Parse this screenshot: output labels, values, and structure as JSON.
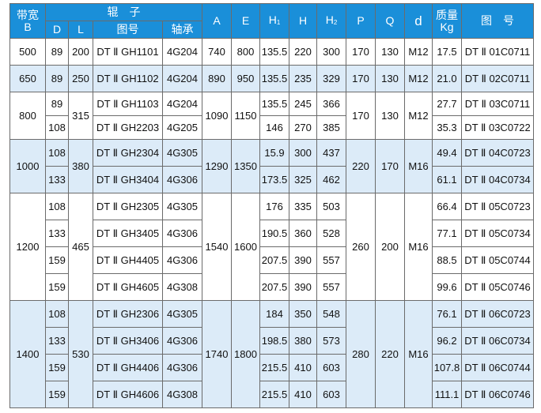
{
  "colors": {
    "header_bg": "#1a8fd9",
    "band_bg": "#dcebf8",
    "border": "#6b6b6b"
  },
  "header": {
    "belt_width": "带宽",
    "belt_width_sym": "B",
    "roller": "辊　子",
    "D": "D",
    "L": "L",
    "roller_drawing": "图号",
    "bearing": "轴承",
    "A": "A",
    "E": "E",
    "H1": "H",
    "H1_sub": "1",
    "H": "H",
    "H2": "H",
    "H2_sub": "2",
    "P": "P",
    "Q": "Q",
    "d": "d",
    "mass": "质量",
    "mass_unit": "Kg",
    "drawing_no": "图　号"
  },
  "groups": [
    {
      "B": "500",
      "L": "200",
      "A": "740",
      "E": "800",
      "P": "170",
      "Q": "130",
      "d": "M12",
      "rows": [
        {
          "D": "89",
          "fig": "DT Ⅱ GH1101",
          "brg": "4G204",
          "H1": "135.5",
          "H": "220",
          "H2": "300",
          "kg": "17.5",
          "dwg": "DT Ⅱ 01C0711"
        }
      ]
    },
    {
      "B": "650",
      "L": "250",
      "A": "890",
      "E": "950",
      "P": "170",
      "Q": "130",
      "d": "M12",
      "rows": [
        {
          "D": "89",
          "fig": "DT Ⅱ GH1102",
          "brg": "4G204",
          "H1": "135.5",
          "H": "235",
          "H2": "329",
          "kg": "21.0",
          "dwg": "DT Ⅱ 02C0711"
        }
      ]
    },
    {
      "B": "800",
      "L": "315",
      "A": "1090",
      "E": "1150",
      "P": "170",
      "Q": "130",
      "d": "M12",
      "rows": [
        {
          "D": "89",
          "fig": "DT Ⅱ GH1103",
          "brg": "4G204",
          "H1": "135.5",
          "H": "245",
          "H2": "366",
          "kg": "27.7",
          "dwg": "DT Ⅱ 03C0711"
        },
        {
          "D": "108",
          "fig": "DT Ⅱ GH2203",
          "brg": "4G205",
          "H1": "146",
          "H": "270",
          "H2": "385",
          "kg": "35.3",
          "dwg": "DT Ⅱ 03C0722"
        }
      ]
    },
    {
      "B": "1000",
      "L": "380",
      "A": "1290",
      "E": "1350",
      "P": "220",
      "Q": "170",
      "d": "M16",
      "rows": [
        {
          "D": "108",
          "fig": "DT Ⅱ GH2304",
          "brg": "4G305",
          "H1": "15.9",
          "H": "300",
          "H2": "437",
          "kg": "49.4",
          "dwg": "DT Ⅱ 04C0723"
        },
        {
          "D": "133",
          "fig": "DT Ⅱ GH3404",
          "brg": "4G306",
          "H1": "173.5",
          "H": "325",
          "H2": "462",
          "kg": "61.1",
          "dwg": "DT Ⅱ 04C0734"
        }
      ]
    },
    {
      "B": "1200",
      "L": "465",
      "A": "1540",
      "E": "1600",
      "P": "260",
      "Q": "200",
      "d": "M16",
      "rows": [
        {
          "D": "108",
          "fig": "DT Ⅱ GH2305",
          "brg": "4G305",
          "H1": "176",
          "H": "335",
          "H2": "503",
          "kg": "66.4",
          "dwg": "DT Ⅱ 05C0723"
        },
        {
          "D": "133",
          "fig": "DT Ⅱ GH3405",
          "brg": "4G306",
          "H1": "190.5",
          "H": "360",
          "H2": "528",
          "kg": "77.1",
          "dwg": "DT Ⅱ 05C0734"
        },
        {
          "D": "159",
          "fig": "DT Ⅱ GH4405",
          "brg": "4G306",
          "H1": "207.5",
          "H": "390",
          "H2": "557",
          "kg": "88.5",
          "dwg": "DT Ⅱ 05C0744"
        },
        {
          "D": "159",
          "fig": "DT Ⅱ GH4605",
          "brg": "4G308",
          "H1": "207.5",
          "H": "390",
          "H2": "557",
          "kg": "99.6",
          "dwg": "DT Ⅱ 05C0746"
        }
      ]
    },
    {
      "B": "1400",
      "L": "530",
      "A": "1740",
      "E": "1800",
      "P": "280",
      "Q": "220",
      "d": "M16",
      "rows": [
        {
          "D": "108",
          "fig": "DT Ⅱ GH2306",
          "brg": "4G305",
          "H1": "184",
          "H": "350",
          "H2": "548",
          "kg": "76.1",
          "dwg": "DT Ⅱ 06C0723"
        },
        {
          "D": "133",
          "fig": "DT Ⅱ GH3406",
          "brg": "4G306",
          "H1": "198.5",
          "H": "380",
          "H2": "573",
          "kg": "96.2",
          "dwg": "DT Ⅱ 06C0734"
        },
        {
          "D": "159",
          "fig": "DT Ⅱ GH4406",
          "brg": "4G306",
          "H1": "215.5",
          "H": "410",
          "H2": "603",
          "kg": "107.8",
          "dwg": "DT Ⅱ 06C0744"
        },
        {
          "D": "159",
          "fig": "DT Ⅱ GH4606",
          "brg": "4G308",
          "H1": "215.5",
          "H": "410",
          "H2": "603",
          "kg": "111.1",
          "dwg": "DT Ⅱ 06C0746"
        }
      ]
    }
  ]
}
